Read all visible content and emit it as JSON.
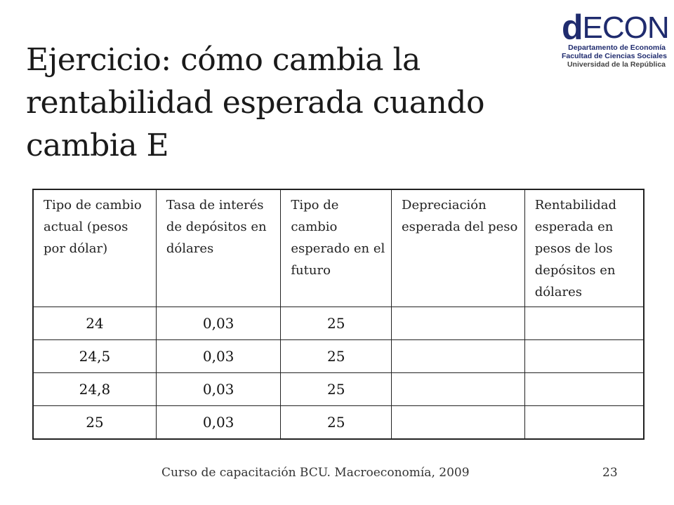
{
  "logo": {
    "mark_d": "d",
    "mark_econ": "ECON",
    "line1": "Departamento de Economía",
    "line2": "Facultad de Ciencias Sociales",
    "line3": "Universidad de la República",
    "color": "#1f2b6e"
  },
  "slide": {
    "title": "Ejercicio: cómo cambia la rentabilidad esperada cuando cambia E"
  },
  "table": {
    "headers": [
      "Tipo de cambio actual (pesos por dólar)",
      "Tasa de interés de depósitos en dólares",
      "Tipo de cambio esperado en el futuro",
      "Depreciación esperada del peso",
      "Rentabilidad esperada en pesos de los depósitos en dólares"
    ],
    "rows": [
      [
        "24",
        "0,03",
        "25",
        "",
        ""
      ],
      [
        "24,5",
        "0,03",
        "25",
        "",
        ""
      ],
      [
        "24,8",
        "0,03",
        "25",
        "",
        ""
      ],
      [
        "25",
        "0,03",
        "25",
        "",
        ""
      ]
    ]
  },
  "footer": {
    "course": "Curso de capacitación BCU. Macroeconomía, 2009",
    "page_number": "23"
  }
}
